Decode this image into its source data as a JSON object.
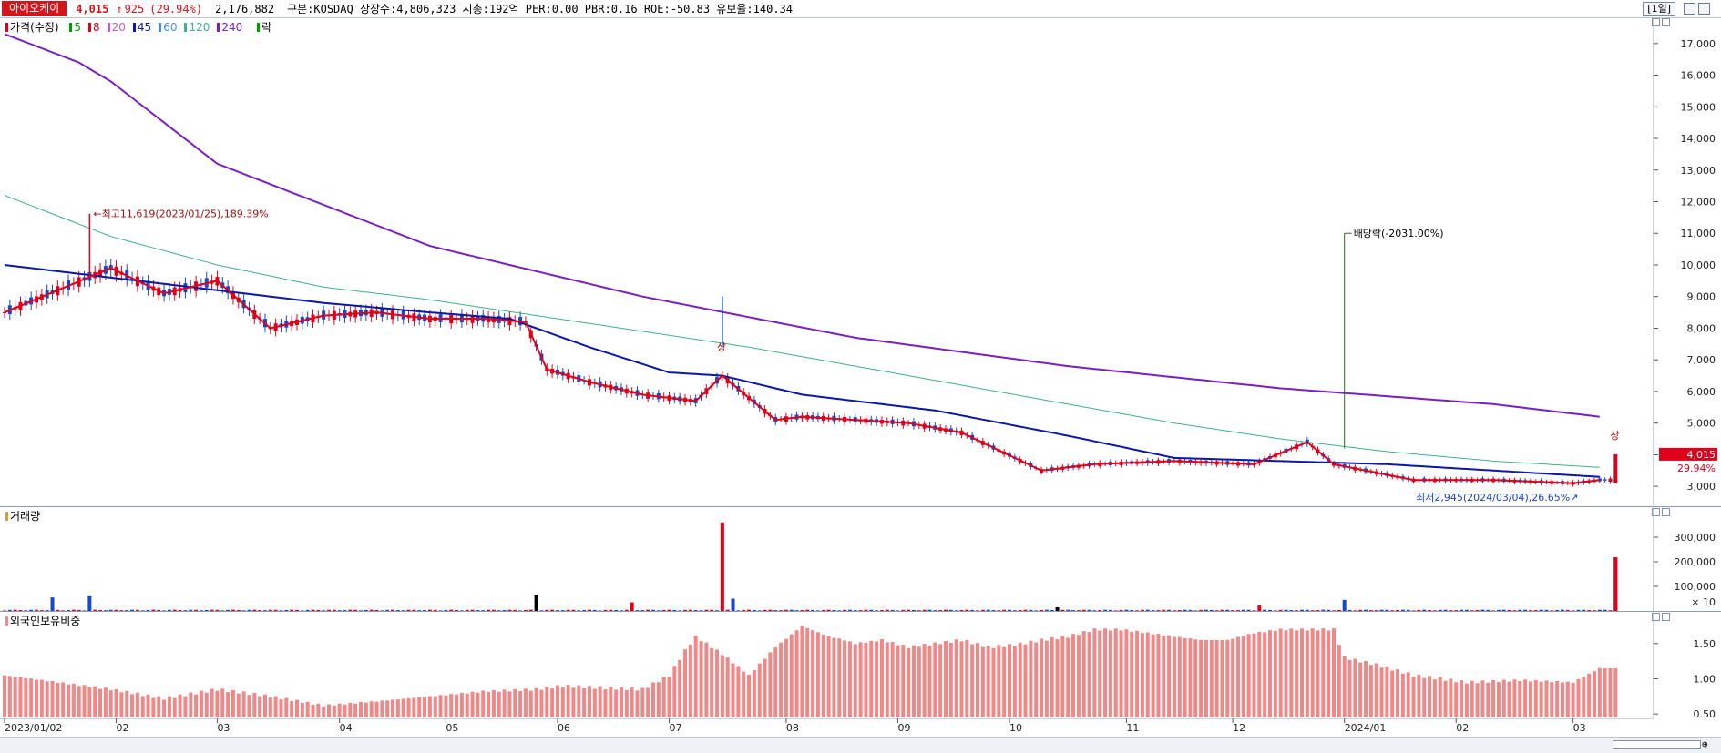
{
  "header": {
    "name": "아이오케이",
    "price": "4,015",
    "change": "925",
    "change_arrow": "↑",
    "change_pct": "(29.94%)",
    "volume": "2,176,882",
    "info": "구분:KOSDAQ 상장수:4,806,323 시총:192억 PER:0.00 PBR:0.16 ROE:-50.83 유보율:140.34",
    "period": "[1일]"
  },
  "price_legend": {
    "main": "가격(수정)",
    "ma": [
      {
        "label": "5",
        "color": "#00a000"
      },
      {
        "label": "8",
        "color": "#e0001a"
      },
      {
        "label": "20",
        "color": "#c060c0"
      },
      {
        "label": "45",
        "color": "#0a18a8"
      },
      {
        "label": "60",
        "color": "#4a90d0"
      },
      {
        "label": "120",
        "color": "#40b090"
      },
      {
        "label": "240",
        "color": "#7a20c0"
      }
    ],
    "extra": "락"
  },
  "volume_legend": "거래량",
  "foreign_legend": "외국인보유비중",
  "annotations": {
    "high": "최고11,619(2023/01/25),189.39%",
    "low": "최저2,945(2024/03/04),26.65%",
    "dividend": "배당락(-2031.00%)",
    "limit_up": "상"
  },
  "last_price_tag": {
    "price": "4,015",
    "pct": "29.94%"
  },
  "colors": {
    "up": "#e0001a",
    "down": "#1848c8",
    "ma240": "#7a20c0",
    "ma120": "#40b090",
    "ma45": "#0a18a8",
    "ma20": "#c060c0",
    "ma8": "#e0001a",
    "foreign": "#f08888"
  },
  "chart_data": [
    {
      "type": "line",
      "title": "가격(수정)",
      "x_ticks": [
        "2023/01/02",
        "02",
        "03",
        "04",
        "05",
        "06",
        "07",
        "08",
        "09",
        "10",
        "11",
        "12",
        "2024/01",
        "02",
        "03"
      ],
      "y_ticks": [
        "3,000",
        "4,000",
        "5,000",
        "6,000",
        "7,000",
        "8,000",
        "9,000",
        "10,000",
        "11,000",
        "12,000",
        "13,000",
        "14,000",
        "15,000",
        "16,000",
        "17,000"
      ],
      "ylim": [
        2400,
        17800
      ],
      "series": [
        {
          "name": "240",
          "x": [
            0,
            14,
            20,
            40,
            80,
            120,
            160,
            200,
            240,
            280,
            300
          ],
          "y": [
            17300,
            16400,
            15800,
            13200,
            10600,
            9000,
            7700,
            6800,
            6100,
            5600,
            5200
          ]
        },
        {
          "name": "120",
          "x": [
            0,
            20,
            40,
            60,
            80,
            100,
            120,
            140,
            160,
            180,
            200,
            220,
            240,
            260,
            280,
            300
          ],
          "y": [
            12200,
            10900,
            10000,
            9300,
            8900,
            8400,
            7900,
            7400,
            6800,
            6200,
            5600,
            5000,
            4500,
            4100,
            3800,
            3600
          ]
        },
        {
          "name": "45",
          "x": [
            0,
            20,
            40,
            60,
            80,
            95,
            110,
            125,
            135,
            150,
            175,
            200,
            220,
            240,
            260,
            280,
            300
          ],
          "y": [
            10000,
            9600,
            9200,
            8800,
            8500,
            8300,
            7400,
            6600,
            6500,
            5900,
            5400,
            4600,
            3900,
            3800,
            3700,
            3500,
            3300
          ]
        },
        {
          "name": "8",
          "x": [
            0,
            10,
            20,
            30,
            40,
            50,
            60,
            70,
            80,
            90,
            98,
            102,
            110,
            120,
            130,
            135,
            140,
            145,
            150,
            160,
            170,
            180,
            195,
            205,
            220,
            235,
            245,
            250,
            265,
            280,
            295,
            300
          ],
          "y": [
            8500,
            9200,
            9900,
            9100,
            9500,
            8000,
            8400,
            8500,
            8300,
            8300,
            8200,
            6700,
            6300,
            5900,
            5700,
            6500,
            5800,
            5100,
            5200,
            5100,
            5000,
            4700,
            3500,
            3700,
            3800,
            3700,
            4400,
            3700,
            3200,
            3200,
            3100,
            3200
          ]
        }
      ],
      "volume_ylim": [
        0,
        400000
      ],
      "volume_ticks": [
        "300,000",
        "200,000",
        "100,000"
      ],
      "volume_unit": "× 10",
      "volume_spikes": [
        {
          "x": 9,
          "v": 55000
        },
        {
          "x": 16,
          "v": 60000
        },
        {
          "x": 100,
          "v": 65000
        },
        {
          "x": 118,
          "v": 35000
        },
        {
          "x": 135,
          "v": 360000
        },
        {
          "x": 137,
          "v": 50000
        },
        {
          "x": 198,
          "v": 15000
        },
        {
          "x": 236,
          "v": 22000
        },
        {
          "x": 252,
          "v": 45000
        },
        {
          "x": 303,
          "v": 218000
        }
      ],
      "foreign_ylim": [
        0.45,
        1.95
      ],
      "foreign_ticks": [
        "1.50",
        "1.00",
        "0.50"
      ],
      "foreign_x": [
        0,
        10,
        20,
        30,
        40,
        50,
        60,
        70,
        80,
        90,
        100,
        105,
        110,
        120,
        125,
        128,
        130,
        135,
        140,
        145,
        150,
        155,
        158,
        160,
        165,
        170,
        175,
        180,
        185,
        190,
        195,
        200,
        205,
        210,
        220,
        225,
        230,
        235,
        240,
        250,
        252,
        258,
        265,
        275,
        285,
        295,
        300
      ],
      "foreign_y": [
        1.05,
        0.95,
        0.85,
        0.72,
        0.85,
        0.75,
        0.62,
        0.68,
        0.75,
        0.82,
        0.85,
        0.9,
        0.88,
        0.85,
        1.05,
        1.4,
        1.6,
        1.35,
        1.05,
        1.45,
        1.75,
        1.6,
        1.55,
        1.5,
        1.55,
        1.45,
        1.5,
        1.55,
        1.45,
        1.48,
        1.55,
        1.6,
        1.7,
        1.7,
        1.6,
        1.55,
        1.55,
        1.65,
        1.7,
        1.7,
        1.3,
        1.2,
        1.05,
        0.95,
        0.98,
        0.95,
        1.15
      ]
    }
  ]
}
